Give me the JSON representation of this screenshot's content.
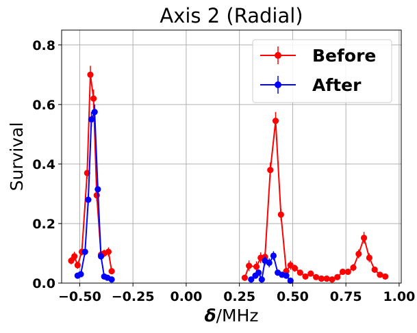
{
  "chart_data": {
    "type": "line",
    "title": "Axis 2 (Radial)",
    "xlabel_symbol": "δ",
    "xlabel_unit": "/MHz",
    "ylabel": "Survival",
    "xlim": [
      -0.585,
      1.01
    ],
    "ylim": [
      0,
      0.85
    ],
    "xticks": [
      -0.5,
      -0.25,
      0.0,
      0.25,
      0.5,
      0.75,
      1.0
    ],
    "xtick_labels": [
      "−0.50",
      "−0.25",
      "0.00",
      "0.25",
      "0.50",
      "0.75",
      "1.00"
    ],
    "yticks": [
      0.0,
      0.2,
      0.4,
      0.6,
      0.8
    ],
    "ytick_labels": [
      "0.0",
      "0.2",
      "0.4",
      "0.6",
      "0.8"
    ],
    "grid": true,
    "legend": "top-right",
    "series": [
      {
        "name": "Before",
        "color": "#ff0000",
        "segments": [
          [
            {
              "x": -0.54,
              "y": 0.075,
              "err": 0.012
            },
            {
              "x": -0.525,
              "y": 0.09,
              "err": 0.015
            },
            {
              "x": -0.51,
              "y": 0.06,
              "err": 0.012
            },
            {
              "x": -0.49,
              "y": 0.105,
              "err": 0.012
            },
            {
              "x": -0.465,
              "y": 0.37,
              "err": 0.02
            },
            {
              "x": -0.45,
              "y": 0.7,
              "err": 0.03
            },
            {
              "x": -0.435,
              "y": 0.62,
              "err": 0.03
            },
            {
              "x": -0.42,
              "y": 0.295,
              "err": 0.02
            },
            {
              "x": -0.4,
              "y": 0.095,
              "err": 0.012
            },
            {
              "x": -0.385,
              "y": 0.1,
              "err": 0.012
            },
            {
              "x": -0.365,
              "y": 0.105,
              "err": 0.015
            },
            {
              "x": -0.35,
              "y": 0.04,
              "err": 0.01
            }
          ],
          [
            {
              "x": 0.275,
              "y": 0.018,
              "err": 0.008
            },
            {
              "x": 0.295,
              "y": 0.058,
              "err": 0.018
            },
            {
              "x": 0.33,
              "y": 0.055,
              "err": 0.018
            },
            {
              "x": 0.35,
              "y": 0.085,
              "err": 0.018
            },
            {
              "x": 0.37,
              "y": 0.088,
              "err": 0.015
            },
            {
              "x": 0.395,
              "y": 0.38,
              "err": 0.025
            },
            {
              "x": 0.42,
              "y": 0.545,
              "err": 0.03
            },
            {
              "x": 0.445,
              "y": 0.23,
              "err": 0.02
            },
            {
              "x": 0.47,
              "y": 0.04,
              "err": 0.012
            },
            {
              "x": 0.49,
              "y": 0.06,
              "err": 0.015
            },
            {
              "x": 0.51,
              "y": 0.05,
              "err": 0.012
            },
            {
              "x": 0.535,
              "y": 0.035,
              "err": 0.01
            },
            {
              "x": 0.56,
              "y": 0.022,
              "err": 0.008
            },
            {
              "x": 0.585,
              "y": 0.032,
              "err": 0.01
            },
            {
              "x": 0.61,
              "y": 0.02,
              "err": 0.008
            },
            {
              "x": 0.635,
              "y": 0.015,
              "err": 0.008
            },
            {
              "x": 0.66,
              "y": 0.015,
              "err": 0.008
            },
            {
              "x": 0.685,
              "y": 0.012,
              "err": 0.006
            },
            {
              "x": 0.71,
              "y": 0.02,
              "err": 0.008
            },
            {
              "x": 0.735,
              "y": 0.038,
              "err": 0.01
            },
            {
              "x": 0.76,
              "y": 0.038,
              "err": 0.01
            },
            {
              "x": 0.785,
              "y": 0.052,
              "err": 0.012
            },
            {
              "x": 0.81,
              "y": 0.098,
              "err": 0.015
            },
            {
              "x": 0.835,
              "y": 0.152,
              "err": 0.02
            },
            {
              "x": 0.86,
              "y": 0.085,
              "err": 0.015
            },
            {
              "x": 0.885,
              "y": 0.045,
              "err": 0.01
            },
            {
              "x": 0.91,
              "y": 0.028,
              "err": 0.008
            },
            {
              "x": 0.935,
              "y": 0.022,
              "err": 0.008
            }
          ]
        ]
      },
      {
        "name": "After",
        "color": "#0000ff",
        "segments": [
          [
            {
              "x": -0.51,
              "y": 0.025,
              "err": 0.008
            },
            {
              "x": -0.495,
              "y": 0.03,
              "err": 0.008
            },
            {
              "x": -0.475,
              "y": 0.105,
              "err": 0.012
            },
            {
              "x": -0.46,
              "y": 0.28,
              "err": 0.02
            },
            {
              "x": -0.445,
              "y": 0.55,
              "err": 0.025
            },
            {
              "x": -0.43,
              "y": 0.575,
              "err": 0.025
            },
            {
              "x": -0.415,
              "y": 0.315,
              "err": 0.02
            },
            {
              "x": -0.4,
              "y": 0.09,
              "err": 0.012
            },
            {
              "x": -0.385,
              "y": 0.022,
              "err": 0.008
            },
            {
              "x": -0.37,
              "y": 0.018,
              "err": 0.008
            },
            {
              "x": -0.35,
              "y": 0.012,
              "err": 0.006
            }
          ],
          [
            {
              "x": 0.305,
              "y": 0.012,
              "err": 0.006
            },
            {
              "x": 0.325,
              "y": 0.025,
              "err": 0.008
            },
            {
              "x": 0.34,
              "y": 0.035,
              "err": 0.01
            },
            {
              "x": 0.355,
              "y": 0.012,
              "err": 0.006
            },
            {
              "x": 0.37,
              "y": 0.075,
              "err": 0.015
            },
            {
              "x": 0.39,
              "y": 0.068,
              "err": 0.015
            },
            {
              "x": 0.41,
              "y": 0.092,
              "err": 0.015
            },
            {
              "x": 0.43,
              "y": 0.035,
              "err": 0.01
            },
            {
              "x": 0.45,
              "y": 0.028,
              "err": 0.008
            },
            {
              "x": 0.47,
              "y": 0.025,
              "err": 0.008
            },
            {
              "x": 0.49,
              "y": 0.008,
              "err": 0.005
            }
          ]
        ]
      }
    ]
  }
}
